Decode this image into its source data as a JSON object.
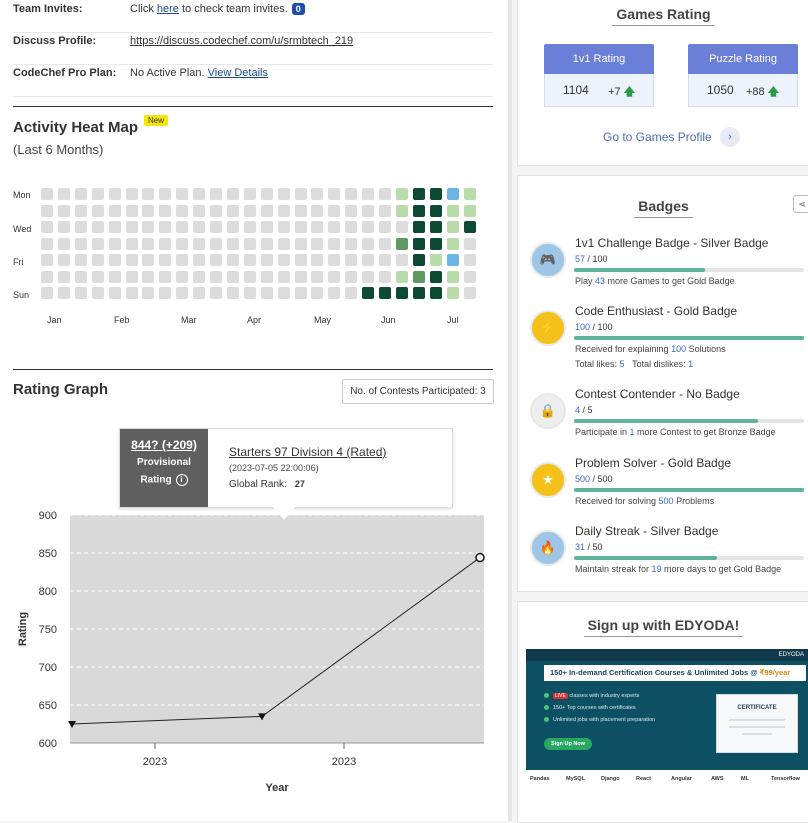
{
  "profile_rows": [
    {
      "label": "Team Invites:",
      "pre": "Click ",
      "link": "here",
      "post": " to check team invites.",
      "count": "0"
    },
    {
      "label": "Discuss Profile:",
      "link": "https://discuss.codechef.com/u/srmbtech_219"
    },
    {
      "label": "CodeChef Pro Plan:",
      "pre": "No Active Plan. ",
      "link": "View Details"
    }
  ],
  "heatmap": {
    "title": "Activity Heat Map",
    "new_badge": "New",
    "subtitle": "(Last 6 Months)",
    "day_labels": [
      "Mon",
      "Wed",
      "Fri",
      "Sun"
    ],
    "months": [
      "Jan",
      "Feb",
      "Mar",
      "Apr",
      "May",
      "Jun",
      "Jul"
    ],
    "colors": {
      "empty": "#dcdcdc",
      "light": "#b9dcaa",
      "mid": "#5c9a62",
      "dark": "#0c4a33",
      "blue": "#6cb4e6"
    },
    "recent_weeks": [
      [
        "0",
        "0",
        "0",
        "0",
        "0",
        "0",
        "3"
      ],
      [
        "0",
        "0",
        "0",
        "0",
        "0",
        "0",
        "3"
      ],
      [
        "1",
        "1",
        "0",
        "2",
        "0",
        "1",
        "3"
      ],
      [
        "3",
        "3",
        "3",
        "3",
        "3",
        "2",
        "3"
      ],
      [
        "3",
        "3",
        "3",
        "3",
        "1",
        "3",
        "3"
      ],
      [
        "4",
        "1",
        "1",
        "1",
        "4",
        "1",
        "1"
      ],
      [
        "1",
        "1",
        "3",
        "0",
        "0",
        "0",
        "0"
      ]
    ]
  },
  "rating_graph": {
    "title": "Rating Graph",
    "contests_label": "No. of Contests Participated: 3",
    "tooltip": {
      "rating": "844? (+209)",
      "provisional": "Provisional",
      "rating_label": "Rating",
      "info_icon": "i",
      "contest": "Starters 97 Division 4 (Rated)",
      "date": "(2023-07-05 22:00:06)",
      "rank_label": "Global Rank:",
      "rank": "27"
    }
  },
  "chart_data": {
    "type": "line",
    "xlabel": "Year",
    "ylabel": "Rating",
    "ylim": [
      600,
      900
    ],
    "yticks": [
      600,
      650,
      700,
      750,
      800,
      850,
      900
    ],
    "xtick_labels": [
      "2023",
      "2023"
    ],
    "grid": true,
    "series": [
      {
        "values": [
          625,
          635,
          844
        ]
      }
    ]
  },
  "games_rating": {
    "title": "Games Rating",
    "cards": [
      {
        "label": "1v1 Rating",
        "value": "1104",
        "delta": "+7"
      },
      {
        "label": "Puzzle Rating",
        "value": "1050",
        "delta": "+88"
      }
    ],
    "link": "Go to Games Profile"
  },
  "badges": {
    "title": "Badges",
    "items": [
      {
        "name": "1v1 Challenge Badge - Silver Badge",
        "cur": "57",
        "max": "/ 100",
        "frac": 0.57,
        "desc_pre": "Play ",
        "desc_num": "43",
        "desc_post": " more Games to get Gold Badge",
        "icon": "controller-icon",
        "color": "#9ec6e6"
      },
      {
        "name": "Code Enthusiast - Gold Badge",
        "cur": "100",
        "max": "/ 100",
        "frac": 1.0,
        "desc_pre": "Received for explaining ",
        "desc_num": "100",
        "desc_post": " Solutions",
        "extra_likes_label": "Total likes:",
        "extra_likes": "5",
        "extra_dislikes_label": "Total dislikes:",
        "extra_dislikes": "1",
        "icon": "lightning-icon",
        "color": "#f4c21b"
      },
      {
        "name": "Contest Contender - No Badge",
        "cur": "4",
        "max": "/ 5",
        "frac": 0.8,
        "desc_pre": "Participate in ",
        "desc_num": "1",
        "desc_post": " more Contest to get Bronze Badge",
        "icon": "lock-icon",
        "color": "#eeeeee"
      },
      {
        "name": "Problem Solver - Gold Badge",
        "cur": "500",
        "max": "/ 500",
        "frac": 1.0,
        "desc_pre": "Received for solving ",
        "desc_num": "500",
        "desc_post": " Problems",
        "icon": "star-icon",
        "color": "#f4c21b"
      },
      {
        "name": "Daily Streak - Silver Badge",
        "cur": "31",
        "max": "/ 50",
        "frac": 0.62,
        "desc_pre": "Maintain streak for ",
        "desc_num": "19",
        "desc_post": " more days to get Gold Badge",
        "icon": "flame-icon",
        "color": "#9ec6e6"
      }
    ]
  },
  "ad": {
    "title": "Sign up with EDYODA!",
    "brand": "EDYODA",
    "banner_pre": "150+ In-demand Certification Courses & Unlimited Jobs @ ",
    "banner_price": "₹99/year",
    "bullets": [
      "LIVE",
      "classes with industry experts",
      "150+ Top courses with certificates",
      "Unlimited jobs with placement preparation"
    ],
    "cta": "Sign Up Now",
    "cert": "CERTIFICATE",
    "tech": [
      "Pandas",
      "MySQL",
      "Django",
      "React",
      "Angular",
      "AWS",
      "ML",
      "Tensorflow"
    ]
  }
}
